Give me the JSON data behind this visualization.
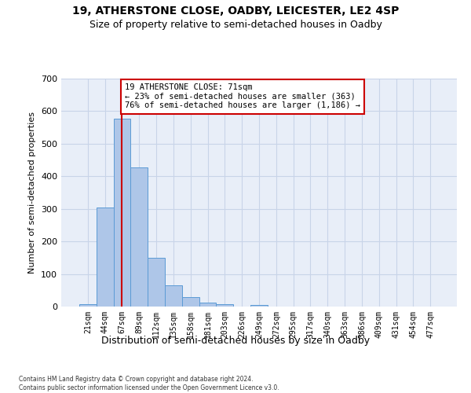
{
  "title1": "19, ATHERSTONE CLOSE, OADBY, LEICESTER, LE2 4SP",
  "title2": "Size of property relative to semi-detached houses in Oadby",
  "xlabel": "Distribution of semi-detached houses by size in Oadby",
  "ylabel": "Number of semi-detached properties",
  "footnote": "Contains HM Land Registry data © Crown copyright and database right 2024.\nContains public sector information licensed under the Open Government Licence v3.0.",
  "bin_labels": [
    "21sqm",
    "44sqm",
    "67sqm",
    "89sqm",
    "112sqm",
    "135sqm",
    "158sqm",
    "181sqm",
    "203sqm",
    "226sqm",
    "249sqm",
    "272sqm",
    "295sqm",
    "317sqm",
    "340sqm",
    "363sqm",
    "386sqm",
    "409sqm",
    "431sqm",
    "454sqm",
    "477sqm"
  ],
  "bar_values": [
    8,
    305,
    578,
    428,
    150,
    65,
    28,
    12,
    8,
    0,
    6,
    0,
    0,
    0,
    0,
    0,
    0,
    0,
    0,
    0,
    0
  ],
  "bar_color": "#aec6e8",
  "bar_edge_color": "#5b9bd5",
  "vline_x": 2,
  "annotation_text": "19 ATHERSTONE CLOSE: 71sqm\n← 23% of semi-detached houses are smaller (363)\n76% of semi-detached houses are larger (1,186) →",
  "annotation_box_color": "#ffffff",
  "annotation_box_edge_color": "#cc0000",
  "ylim": [
    0,
    700
  ],
  "yticks": [
    0,
    100,
    200,
    300,
    400,
    500,
    600,
    700
  ],
  "grid_color": "#c8d4e8",
  "bg_color": "#e8eef8",
  "title1_fontsize": 10,
  "title2_fontsize": 9
}
